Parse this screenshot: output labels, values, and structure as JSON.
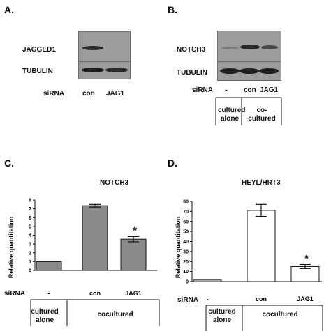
{
  "panel_a": {
    "letter": "A.",
    "row1_label": "JAGGED1",
    "row2_label": "TUBULIN",
    "sirna_label": "siRNA",
    "lanes": [
      "con",
      "JAG1"
    ]
  },
  "panel_b": {
    "letter": "B.",
    "row1_label": "NOTCH3",
    "row2_label": "TUBULIN",
    "sirna_label": "siRNA",
    "lanes": [
      "-",
      "con",
      "JAG1"
    ],
    "group1": [
      "cultured",
      "alone"
    ],
    "group2": [
      "co-",
      "cultured"
    ]
  },
  "panel_c": {
    "letter": "C.",
    "title": "NOTCH3",
    "ylabel": "Relative quantitation",
    "sirna_label": "siRNA",
    "group1": [
      "cultured",
      "alone"
    ],
    "group2": "cocultured",
    "asterisk": "*"
  },
  "panel_d": {
    "letter": "D.",
    "title": "HEYL/HRT3",
    "ylabel": "Relative quantitation",
    "sirna_label": "siRNA",
    "group1": [
      "cultured",
      "alone"
    ],
    "group2": "cocultured",
    "asterisk": "*"
  },
  "chart_data": [
    {
      "type": "bar",
      "title": "NOTCH3",
      "ylabel": "Relative quantitation",
      "categories": [
        "-",
        "con",
        "JAG1"
      ],
      "values": [
        1.0,
        7.35,
        3.55
      ],
      "errors": [
        0.0,
        0.15,
        0.3
      ],
      "ylim": [
        0,
        8
      ],
      "yticks": [
        0,
        1,
        2,
        3,
        4,
        5,
        6,
        7,
        8
      ],
      "bar_color": "#8a8a8a",
      "significant": [
        false,
        false,
        true
      ]
    },
    {
      "type": "bar",
      "title": "HEYL/HRT3",
      "ylabel": "Relative quantitation",
      "categories": [
        "-",
        "con",
        "JAG1"
      ],
      "values": [
        1.5,
        71,
        15
      ],
      "errors": [
        0.0,
        6,
        2
      ],
      "ylim": [
        0,
        80
      ],
      "yticks": [
        0,
        10,
        20,
        30,
        40,
        50,
        60,
        70,
        80
      ],
      "bar_color": "#ffffff",
      "significant": [
        false,
        false,
        true
      ]
    }
  ]
}
